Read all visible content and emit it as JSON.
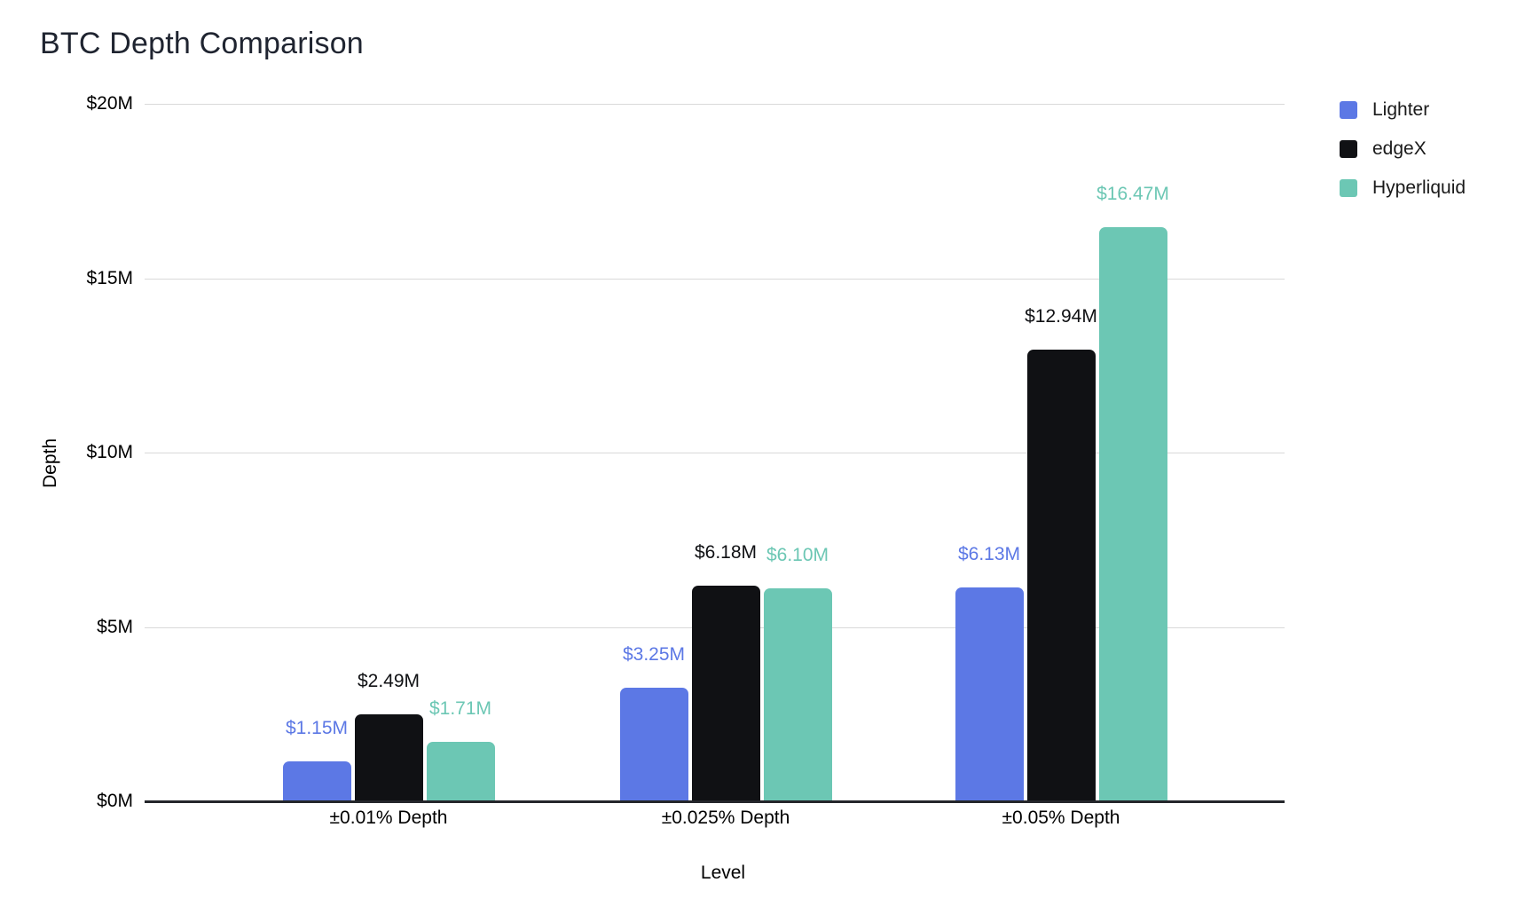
{
  "header": {
    "title": "BTC Depth Comparison"
  },
  "legend": {
    "position": "top-right",
    "items": [
      {
        "label": "Lighter",
        "color": "#5C78E5"
      },
      {
        "label": "edgeX",
        "color": "#101114"
      },
      {
        "label": "Hyperliquid",
        "color": "#6CC7B4"
      }
    ]
  },
  "chart_data": {
    "type": "bar",
    "title": "BTC Depth Comparison",
    "xlabel": "Level",
    "ylabel": "Depth",
    "ylim": [
      0,
      20
    ],
    "grid": true,
    "legend_position": "top-right",
    "categories": [
      "±0.01% Depth",
      "±0.025% Depth",
      "±0.05% Depth"
    ],
    "yticks": [
      {
        "value": 0,
        "label": "$0M"
      },
      {
        "value": 5,
        "label": "$5M"
      },
      {
        "value": 10,
        "label": "$10M"
      },
      {
        "value": 15,
        "label": "$15M"
      },
      {
        "value": 20,
        "label": "$20M"
      }
    ],
    "series": [
      {
        "name": "Lighter",
        "color": "#5C78E5",
        "values": [
          1.15,
          3.25,
          6.13
        ],
        "labels": [
          "$1.15M",
          "$3.25M",
          "$6.13M"
        ]
      },
      {
        "name": "edgeX",
        "color": "#101114",
        "values": [
          2.49,
          6.18,
          12.94
        ],
        "labels": [
          "$2.49M",
          "$6.18M",
          "$12.94M"
        ]
      },
      {
        "name": "Hyperliquid",
        "color": "#6CC7B4",
        "values": [
          1.71,
          6.1,
          16.47
        ],
        "labels": [
          "$1.71M",
          "$6.10M",
          "$16.47M"
        ]
      }
    ]
  }
}
